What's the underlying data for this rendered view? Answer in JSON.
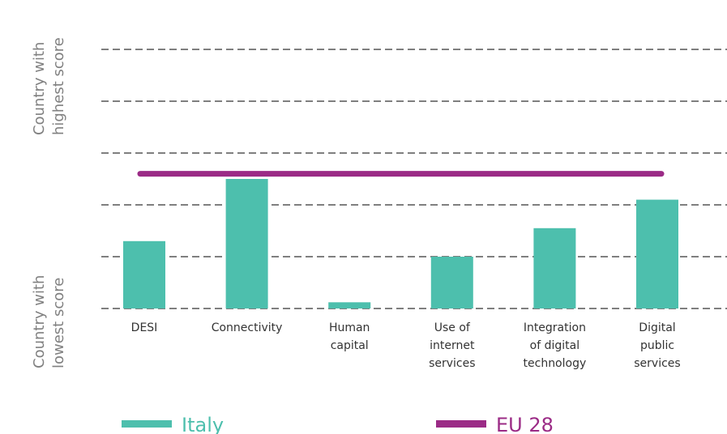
{
  "chart_data": {
    "type": "bar",
    "y_label_top": [
      "Country with",
      "highest score"
    ],
    "y_label_bottom": [
      "Country with",
      "lowest score"
    ],
    "categories": [
      [
        "DESI"
      ],
      [
        "Connectivity"
      ],
      [
        "Human",
        "capital"
      ],
      [
        "Use of",
        "internet",
        "services"
      ],
      [
        "Integration",
        "of digital",
        "technology"
      ],
      [
        "Digital",
        "public",
        "services"
      ]
    ],
    "ylim": [
      0,
      5
    ],
    "gridlines": [
      1,
      2,
      3,
      4,
      5
    ],
    "series": [
      {
        "name": "Italy",
        "values": [
          1.3,
          2.5,
          0.12,
          1.0,
          1.55,
          2.1
        ]
      }
    ],
    "reference_line": {
      "name": "EU 28",
      "value": 2.6
    },
    "legend_placement": "bottom",
    "colors": {
      "bar": "#4dbfad",
      "line": "#9b2b86",
      "grid": "#555555"
    }
  }
}
